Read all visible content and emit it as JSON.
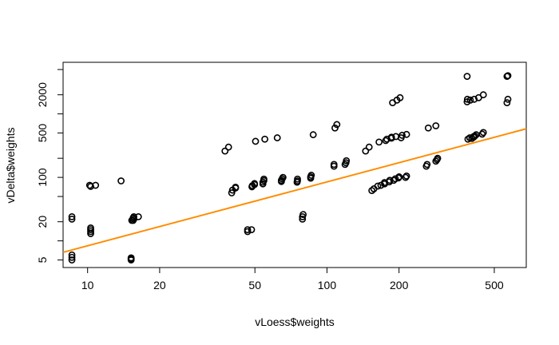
{
  "chart_data": {
    "type": "scatter",
    "title": "",
    "xlabel": "vLoess$weights",
    "ylabel": "vDelta$weights",
    "x_scale": "log",
    "y_scale": "log",
    "xlim": [
      7.9,
      680
    ],
    "ylim": [
      3.8,
      6500
    ],
    "x_ticks": [
      10,
      20,
      50,
      100,
      200,
      500
    ],
    "x_tick_labels": [
      "10",
      "20",
      "50",
      "100",
      "200",
      "500"
    ],
    "y_ticks": [
      5,
      10,
      20,
      50,
      100,
      200,
      500,
      1000,
      2000,
      5000
    ],
    "y_tick_labels": [
      "5",
      "",
      "20",
      "",
      "100",
      "",
      "500",
      "",
      "2000",
      ""
    ],
    "grid": false,
    "legend": "none",
    "point_style": "open-circle",
    "point_color": "#000000",
    "fit_line": {
      "color": "#ff8c00",
      "x": [
        7.9,
        680
      ],
      "y": [
        6.6,
        583
      ]
    },
    "series": [
      {
        "x": [
          8.6,
          8.6,
          8.6,
          8.6,
          8.6,
          10.3,
          10.3,
          10.3,
          10.3,
          10.3,
          10.2,
          10.8,
          13.8,
          15.2,
          15.2,
          15.2,
          15.3,
          15.5,
          15.6,
          15.5,
          15.6,
          16.3,
          37.5,
          38.8,
          40,
          40.3,
          41.5,
          41.5,
          46.6,
          46.6,
          48.4,
          48.6,
          48.8,
          49.8,
          49.8,
          50.3,
          54,
          54,
          54.5,
          54.5,
          55,
          62,
          64.5,
          64.5,
          65,
          65.5,
          75,
          75.3,
          75.3,
          79,
          79,
          79.5,
          85.5,
          85.5,
          86,
          87.6,
          107,
          107,
          108,
          110,
          119,
          120,
          120.5,
          145,
          150,
          154,
          157,
          163,
          165,
          168,
          174,
          174,
          176,
          178,
          182,
          183,
          186,
          186,
          188,
          190,
          193,
          194,
          196,
          199,
          200,
          202,
          204,
          206,
          213,
          215,
          215,
          260,
          262,
          265,
          285,
          285,
          288,
          290,
          385,
          385,
          386,
          388,
          395,
          397,
          403,
          410,
          410,
          412,
          415,
          420,
          430,
          445,
          450,
          450,
          565,
          565,
          570,
          570
        ],
        "y": [
          5,
          5.5,
          6,
          22,
          24,
          13,
          14,
          15,
          16,
          72,
          75,
          75,
          88,
          5,
          5.2,
          5.4,
          21,
          21,
          22,
          23,
          24,
          24,
          260,
          300,
          57,
          63,
          68,
          70,
          14,
          15,
          15,
          71,
          74,
          77,
          80,
          370,
          79,
          84,
          89,
          94,
          400,
          420,
          86,
          90,
          95,
          100,
          84,
          88,
          94,
          22,
          24,
          26,
          97,
          102,
          108,
          470,
          150,
          160,
          600,
          680,
          160,
          170,
          183,
          260,
          300,
          62,
          66,
          73,
          360,
          75,
          79,
          83,
          380,
          400,
          85,
          90,
          415,
          430,
          1500,
          90,
          95,
          440,
          1650,
          98,
          102,
          1800,
          420,
          460,
          100,
          105,
          475,
          150,
          160,
          600,
          650,
          180,
          190,
          200,
          3900,
          1550,
          1700,
          400,
          420,
          1650,
          410,
          430,
          440,
          1700,
          450,
          470,
          1800,
          480,
          510,
          2000,
          3900,
          1500,
          1700,
          4000
        ]
      }
    ]
  }
}
